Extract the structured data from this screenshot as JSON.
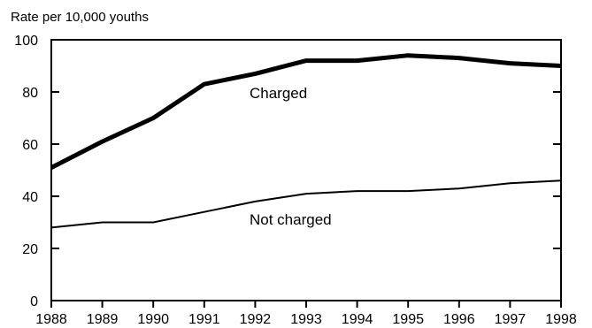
{
  "chart_data": {
    "type": "line",
    "title": "",
    "xlabel": "",
    "ylabel": "Rate per 10,000 youths",
    "x": [
      1988,
      1989,
      1990,
      1991,
      1992,
      1993,
      1994,
      1995,
      1996,
      1997,
      1998
    ],
    "ylim": [
      0,
      100
    ],
    "yticks": [
      0,
      20,
      40,
      60,
      80,
      100
    ],
    "grid": false,
    "legend": "none",
    "series": [
      {
        "name": "Charged",
        "values": [
          51,
          61,
          70,
          83,
          87,
          92,
          92,
          94,
          93,
          91,
          90
        ],
        "color": "#000000",
        "style": "thick"
      },
      {
        "name": "Not charged",
        "values": [
          28,
          30,
          30,
          34,
          38,
          41,
          42,
          42,
          43,
          45,
          46
        ],
        "color": "#000000",
        "style": "thin"
      }
    ]
  }
}
